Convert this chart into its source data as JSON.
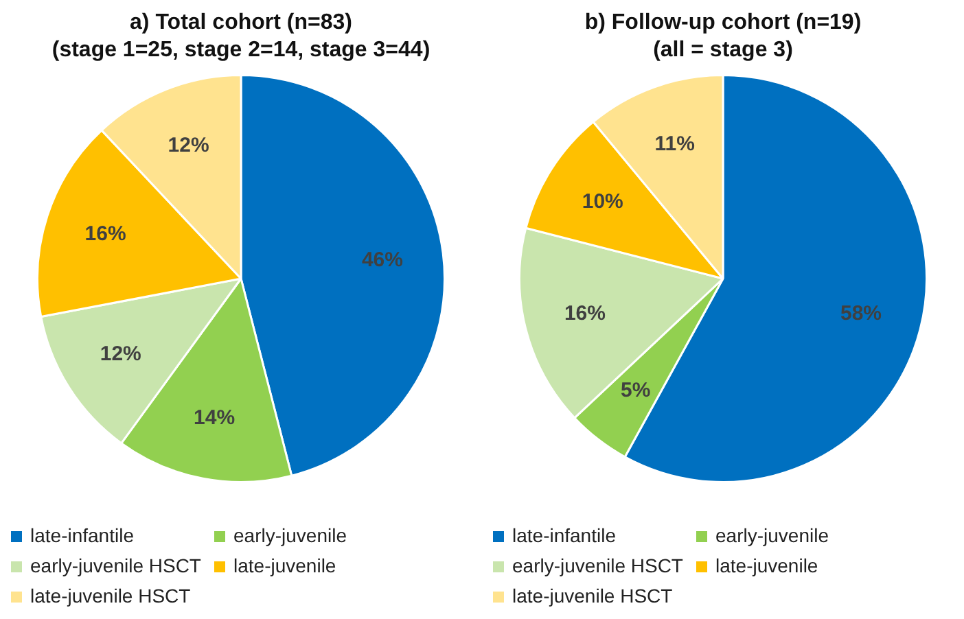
{
  "chart_data": [
    {
      "type": "pie",
      "title": "a) Total cohort (n=83)",
      "subtitle": "(stage 1=25, stage 2=14, stage 3=44)",
      "categories": [
        "late-infantile",
        "early-juvenile",
        "early-juvenile HSCT",
        "late-juvenile",
        "late-juvenile HSCT"
      ],
      "values": [
        46,
        14,
        12,
        16,
        12
      ],
      "value_labels": [
        "46%",
        "14%",
        "12%",
        "16%",
        "12%"
      ],
      "colors": [
        "#0070c0",
        "#92d050",
        "#c9e5ad",
        "#ffc000",
        "#ffe38f"
      ],
      "legend": "bottom"
    },
    {
      "type": "pie",
      "title": "b) Follow-up cohort (n=19)",
      "subtitle": "(all = stage 3)",
      "categories": [
        "late-infantile",
        "early-juvenile",
        "early-juvenile HSCT",
        "late-juvenile",
        "late-juvenile HSCT"
      ],
      "values": [
        58,
        5,
        16,
        10,
        11
      ],
      "value_labels": [
        "58%",
        "5%",
        "16%",
        "10%",
        "11%"
      ],
      "colors": [
        "#0070c0",
        "#92d050",
        "#c9e5ad",
        "#ffc000",
        "#ffe38f"
      ],
      "legend": "bottom"
    }
  ]
}
